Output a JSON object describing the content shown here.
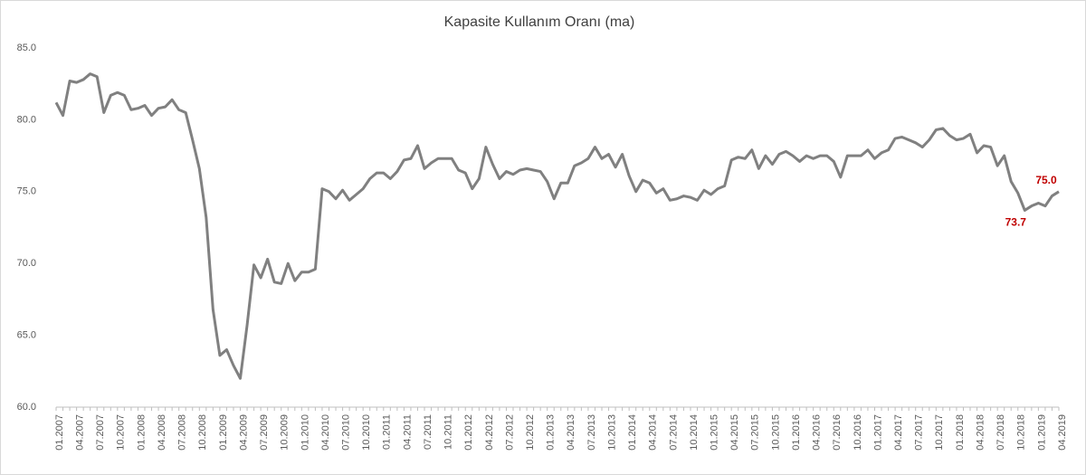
{
  "chart_data": {
    "type": "line",
    "title": "Kapasite Kullanım Oranı (ma)",
    "categories": [
      "01.2007",
      null,
      null,
      "04.2007",
      null,
      null,
      "07.2007",
      null,
      null,
      "10.2007",
      null,
      null,
      "01.2008",
      null,
      null,
      "04.2008",
      null,
      null,
      "07.2008",
      null,
      null,
      "10.2008",
      null,
      null,
      "01.2009",
      null,
      null,
      "04.2009",
      null,
      null,
      "07.2009",
      null,
      null,
      "10.2009",
      null,
      null,
      "01.2010",
      null,
      null,
      "04.2010",
      null,
      null,
      "07.2010",
      null,
      null,
      "10.2010",
      null,
      null,
      "01.2011",
      null,
      null,
      "04.2011",
      null,
      null,
      "07.2011",
      null,
      null,
      "10.2011",
      null,
      null,
      "01.2012",
      null,
      null,
      "04.2012",
      null,
      null,
      "07.2012",
      null,
      null,
      "10.2012",
      null,
      null,
      "01.2013",
      null,
      null,
      "04.2013",
      null,
      null,
      "07.2013",
      null,
      null,
      "10.2013",
      null,
      null,
      "01.2014",
      null,
      null,
      "04.2014",
      null,
      null,
      "07.2014",
      null,
      null,
      "10.2014",
      null,
      null,
      "01.2015",
      null,
      null,
      "04.2015",
      null,
      null,
      "07.2015",
      null,
      null,
      "10.2015",
      null,
      null,
      "01.2016",
      null,
      null,
      "04.2016",
      null,
      null,
      "07.2016",
      null,
      null,
      "10.2016",
      null,
      null,
      "01.2017",
      null,
      null,
      "04.2017",
      null,
      null,
      "07.2017",
      null,
      null,
      "10.2017",
      null,
      null,
      "01.2018",
      null,
      null,
      "04.2018",
      null,
      null,
      "07.2018",
      null,
      null,
      "10.2018",
      null,
      null,
      "01.2019",
      null,
      null,
      "04.2019"
    ],
    "series": [
      {
        "color": "#808080",
        "values": [
          81.2,
          80.3,
          82.7,
          82.6,
          82.8,
          83.2,
          83.0,
          80.5,
          81.7,
          81.9,
          81.7,
          80.7,
          80.8,
          81.0,
          80.3,
          80.8,
          80.9,
          81.4,
          80.7,
          80.5,
          78.6,
          76.6,
          73.2,
          66.8,
          63.6,
          64.0,
          62.9,
          62.0,
          65.7,
          69.9,
          69.0,
          70.3,
          68.7,
          68.6,
          70.0,
          68.8,
          69.4,
          69.4,
          69.6,
          75.2,
          75.0,
          74.5,
          75.1,
          74.4,
          74.8,
          75.2,
          75.9,
          76.3,
          76.3,
          75.9,
          76.4,
          77.2,
          77.3,
          78.2,
          76.6,
          77.0,
          77.3,
          77.3,
          77.3,
          76.5,
          76.3,
          75.2,
          75.9,
          78.1,
          76.9,
          75.9,
          76.4,
          76.2,
          76.5,
          76.6,
          76.5,
          76.4,
          75.7,
          74.5,
          75.6,
          75.6,
          76.8,
          77.0,
          77.3,
          78.1,
          77.3,
          77.6,
          76.7,
          77.6,
          76.1,
          75.0,
          75.8,
          75.6,
          74.9,
          75.2,
          74.4,
          74.5,
          74.7,
          74.6,
          74.4,
          75.1,
          74.8,
          75.2,
          75.4,
          77.2,
          77.4,
          77.3,
          77.9,
          76.6,
          77.5,
          76.9,
          77.6,
          77.8,
          77.5,
          77.1,
          77.5,
          77.3,
          77.5,
          77.5,
          77.1,
          76.0,
          77.5,
          77.5,
          77.5,
          77.9,
          77.3,
          77.7,
          77.9,
          78.7,
          78.8,
          78.6,
          78.4,
          78.1,
          78.6,
          79.3,
          79.4,
          78.9,
          78.6,
          78.7,
          79.0,
          77.7,
          78.2,
          78.1,
          76.8,
          77.5,
          75.7,
          74.9,
          73.7,
          74.0,
          74.2,
          74.0,
          74.7,
          75.0
        ],
        "value_labels": [
          null,
          null,
          null,
          null,
          null,
          null,
          null,
          null,
          null,
          null,
          null,
          null,
          null,
          null,
          null,
          null,
          null,
          null,
          null,
          null,
          null,
          null,
          null,
          null,
          null,
          null,
          null,
          null,
          null,
          null,
          null,
          null,
          null,
          null,
          null,
          null,
          null,
          null,
          null,
          null,
          null,
          null,
          null,
          null,
          null,
          null,
          null,
          null,
          null,
          null,
          null,
          null,
          null,
          null,
          null,
          null,
          null,
          null,
          null,
          null,
          null,
          null,
          null,
          null,
          null,
          null,
          null,
          null,
          null,
          null,
          null,
          null,
          null,
          null,
          null,
          null,
          null,
          null,
          null,
          null,
          null,
          null,
          null,
          null,
          null,
          null,
          null,
          null,
          null,
          null,
          null,
          null,
          null,
          null,
          null,
          null,
          null,
          null,
          null,
          null,
          null,
          null,
          null,
          null,
          null,
          null,
          null,
          null,
          null,
          null,
          null,
          null,
          null,
          null,
          null,
          null,
          null,
          null,
          null,
          null,
          null,
          null,
          null,
          null,
          null,
          null,
          null,
          null,
          null,
          null,
          null,
          null,
          null,
          null,
          null,
          null,
          null,
          null,
          null,
          null,
          null,
          null,
          "73.7",
          null,
          null,
          null,
          null,
          "75.0"
        ],
        "value_label_color": "#c00000"
      }
    ],
    "ylim": [
      60,
      85
    ],
    "yticks": [
      {
        "value": 60,
        "label": "60.0"
      },
      {
        "value": 65,
        "label": "65.0"
      },
      {
        "value": 70,
        "label": "70.0"
      },
      {
        "value": 75,
        "label": "75.0"
      },
      {
        "value": 80,
        "label": "80.0"
      },
      {
        "value": 85,
        "label": "85.0"
      }
    ],
    "grid": false
  }
}
